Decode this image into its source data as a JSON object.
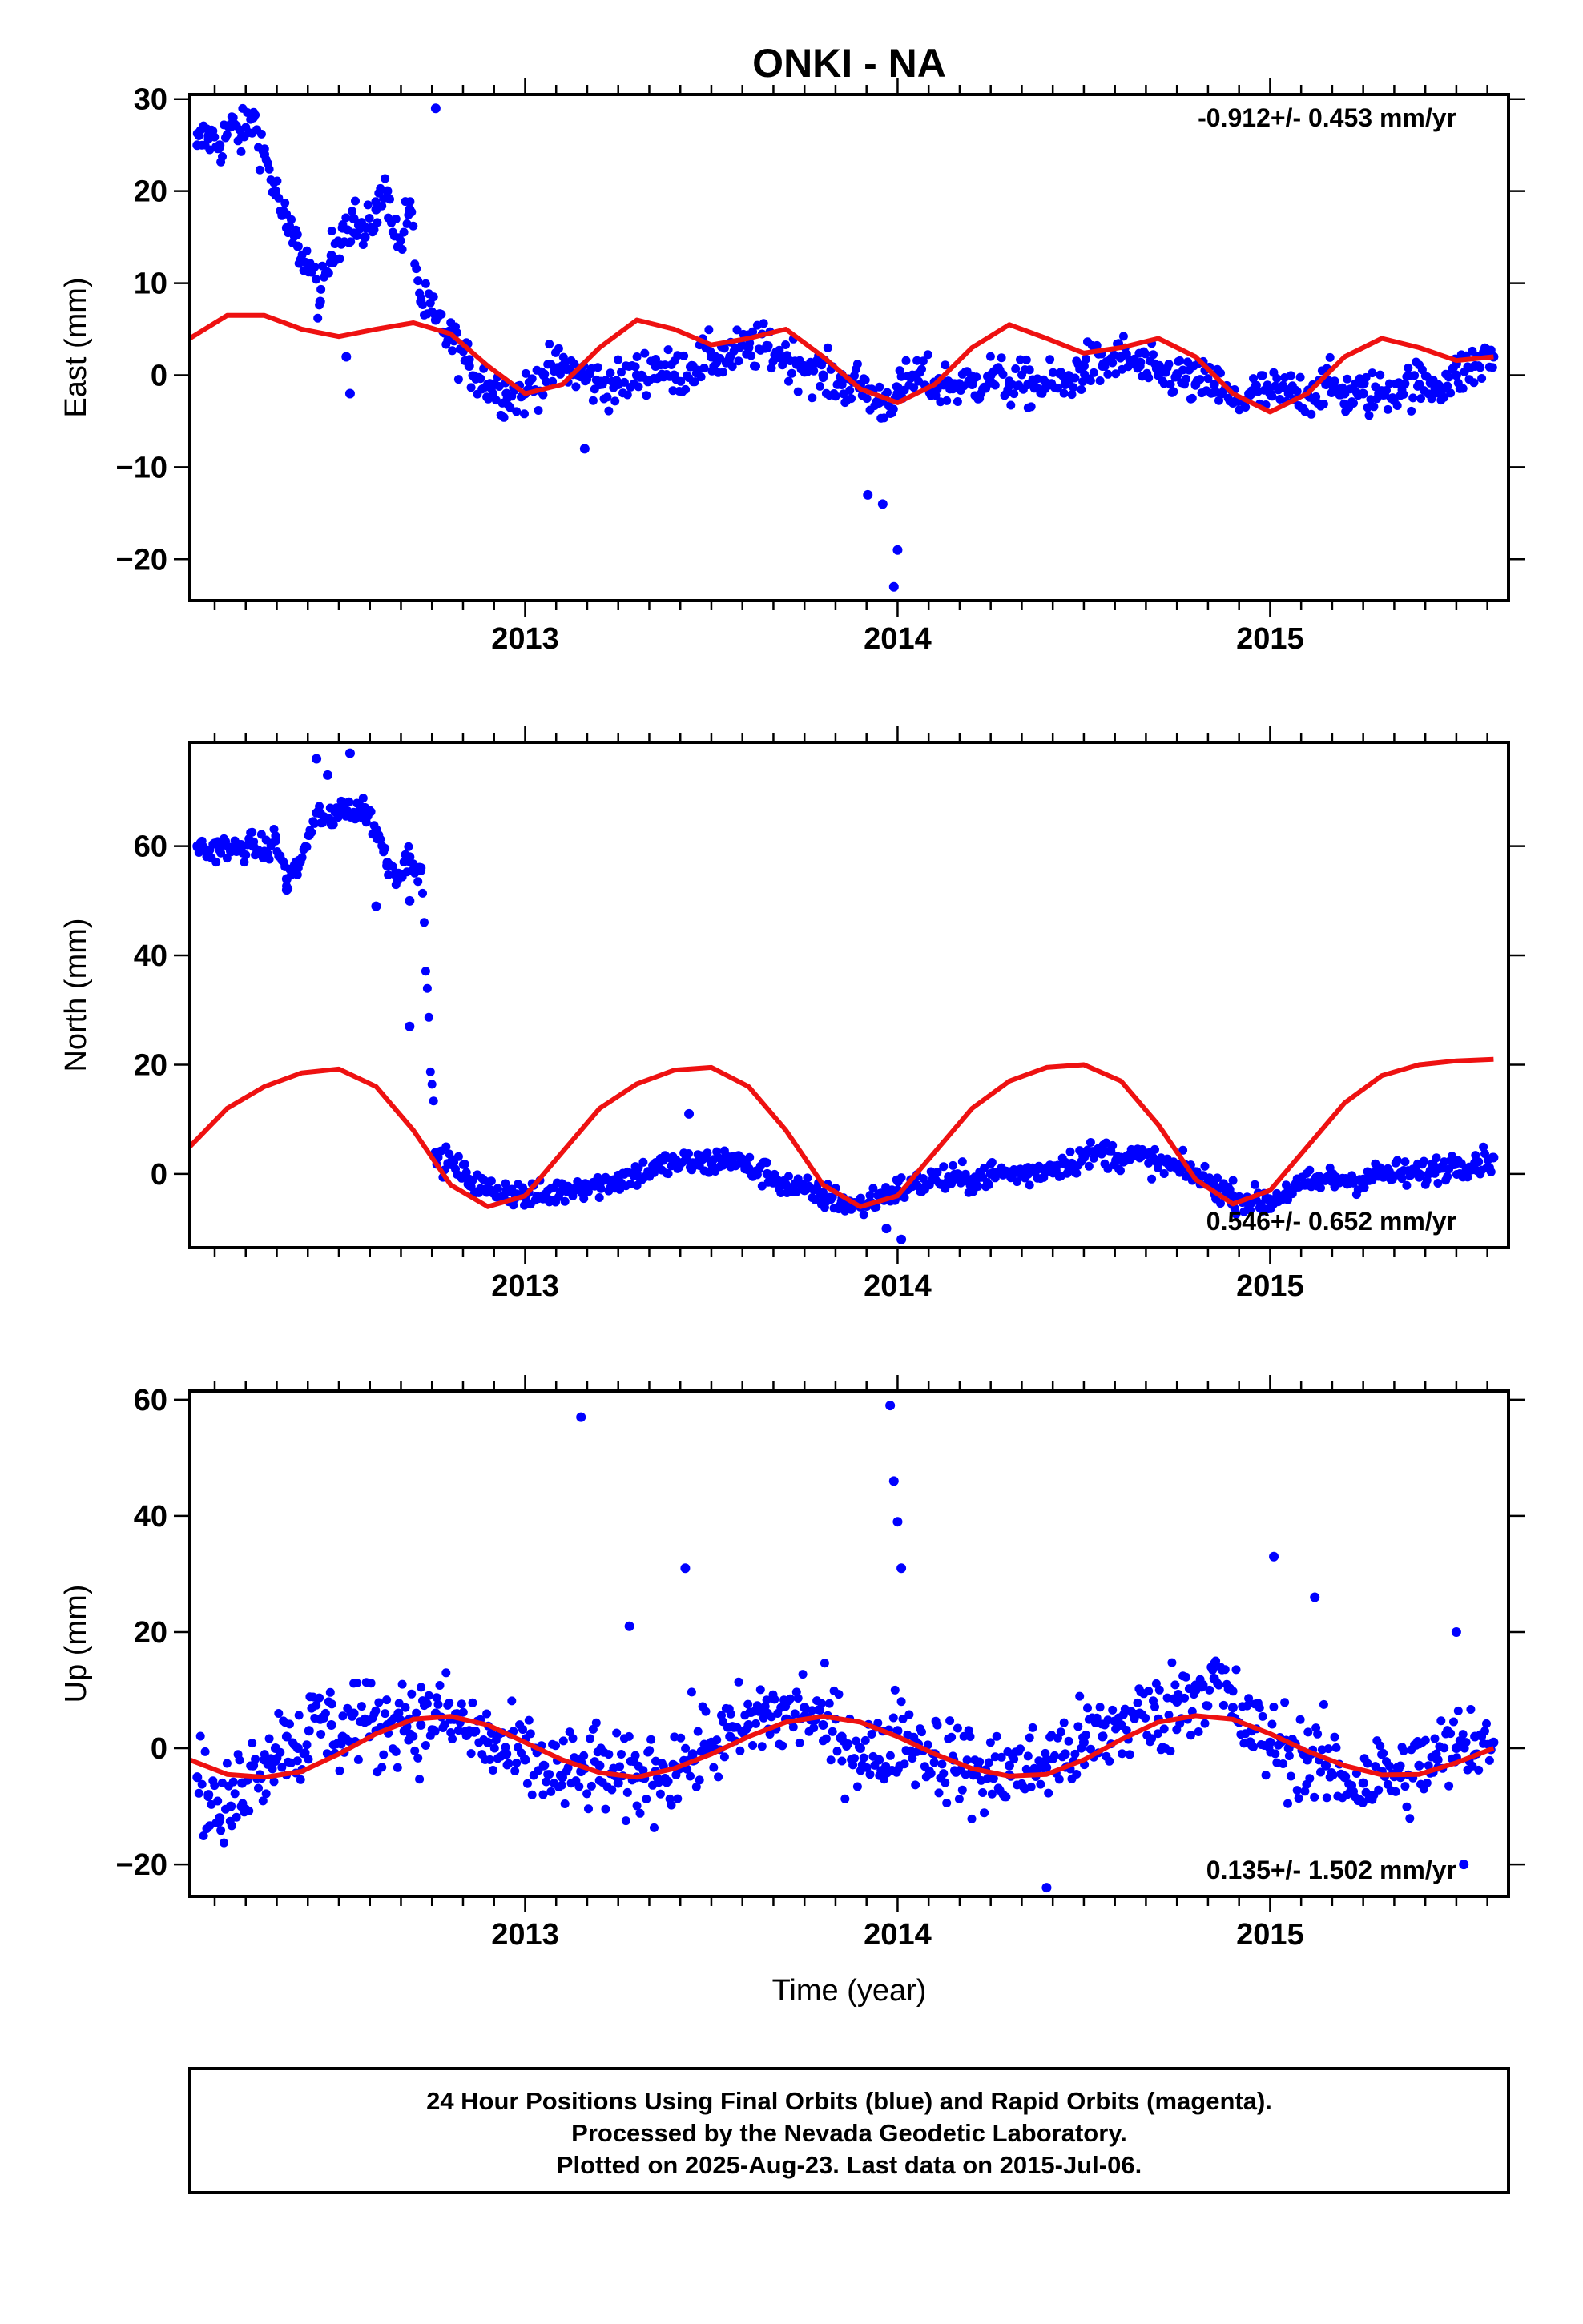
{
  "figure": {
    "title": "ONKI - NA",
    "footer": {
      "lines": [
        "24 Hour Positions Using Final Orbits (blue) and Rapid Orbits (magenta).",
        "Processed by the Nevada Geodetic Laboratory.",
        "Plotted on 2025-Aug-23. Last data on 2015-Jul-06."
      ]
    }
  },
  "chart_data": [
    {
      "type": "scatter",
      "ylabel": "East (mm)",
      "xlabel": "",
      "xlim": [
        2012.1,
        2015.64
      ],
      "ylim": [
        -24.5,
        30.5
      ],
      "xticks": [
        2013,
        2014,
        2015
      ],
      "yticks": [
        -20,
        -10,
        0,
        10,
        20,
        30
      ],
      "rate_label": "-0.912+/- 0.453 mm/yr",
      "rate_position": "top-right",
      "colors": {
        "points": "#0000ff",
        "model": "#ee1111"
      },
      "series": [
        {
          "kind": "points",
          "x": [
            2012.12,
            2012.15,
            2012.18,
            2012.21,
            2012.24,
            2012.27,
            2012.3,
            2012.33,
            2012.36,
            2012.39,
            2012.42,
            2012.45,
            2012.48,
            2012.51,
            2012.54,
            2012.57,
            2012.6,
            2012.63,
            2012.66,
            2012.69,
            2012.72,
            2012.76,
            2012.8,
            2012.85,
            2012.9,
            2012.95,
            2013.0,
            2013.05,
            2013.1,
            2013.15,
            2013.2,
            2013.25,
            2013.3,
            2013.35,
            2013.4,
            2013.45,
            2013.5,
            2013.55,
            2013.6,
            2013.65,
            2013.7,
            2013.75,
            2013.8,
            2013.85,
            2013.9,
            2013.95,
            2014.0,
            2014.05,
            2014.1,
            2014.15,
            2014.2,
            2014.25,
            2014.3,
            2014.35,
            2014.4,
            2014.45,
            2014.5,
            2014.55,
            2014.6,
            2014.65,
            2014.7,
            2014.75,
            2014.8,
            2014.85,
            2014.9,
            2014.95,
            2015.0,
            2015.05,
            2015.1,
            2015.15,
            2015.2,
            2015.25,
            2015.3,
            2015.35,
            2015.4,
            2015.45,
            2015.5,
            2015.55,
            2015.6
          ],
          "y": [
            25,
            26,
            25,
            27,
            26,
            28,
            24,
            20,
            16,
            14,
            12,
            8,
            13,
            16,
            17,
            15,
            18,
            20,
            14,
            18,
            8,
            6,
            4,
            1,
            -1,
            -2,
            -2,
            0,
            1,
            0,
            -1,
            -1,
            0,
            1,
            0,
            1,
            2,
            2,
            3,
            3,
            2,
            1,
            0,
            -1,
            -1,
            -3,
            -2,
            0,
            -1,
            -1,
            -1,
            0,
            -1,
            -1,
            -1,
            -1,
            1,
            1,
            2,
            1,
            0,
            0,
            -1,
            -1,
            -3,
            -2,
            -2,
            -2,
            -2,
            -1,
            -2,
            -2,
            -2,
            -1,
            -1,
            -1,
            0,
            1,
            2
          ]
        },
        {
          "kind": "outliers",
          "x": [
            2012.52,
            2012.53,
            2012.76,
            2013.16,
            2013.92,
            2013.96,
            2013.99,
            2014.0
          ],
          "y": [
            2,
            -2,
            29,
            -8,
            -13,
            -14,
            -23,
            -19
          ]
        },
        {
          "kind": "model",
          "x": [
            2012.1,
            2012.2,
            2012.3,
            2012.4,
            2012.5,
            2012.6,
            2012.7,
            2012.8,
            2012.9,
            2013.0,
            2013.1,
            2013.2,
            2013.3,
            2013.4,
            2013.5,
            2013.6,
            2013.7,
            2013.8,
            2013.9,
            2014.0,
            2014.1,
            2014.2,
            2014.3,
            2014.4,
            2014.5,
            2014.6,
            2014.7,
            2014.8,
            2014.9,
            2015.0,
            2015.1,
            2015.2,
            2015.3,
            2015.4,
            2015.5,
            2015.6
          ],
          "y": [
            4,
            6.5,
            6.5,
            5,
            4.2,
            5,
            5.7,
            4.5,
            1,
            -2,
            -1,
            3,
            6,
            5,
            3.3,
            4,
            5,
            2,
            -1.5,
            -3,
            -1,
            3,
            5.5,
            4,
            2.4,
            3,
            4,
            2,
            -2,
            -4,
            -2,
            2,
            4,
            3,
            1.6,
            2
          ]
        }
      ]
    },
    {
      "type": "scatter",
      "ylabel": "North (mm)",
      "xlabel": "",
      "xlim": [
        2012.1,
        2015.64
      ],
      "ylim": [
        -13.5,
        79
      ],
      "xticks": [
        2013,
        2014,
        2015
      ],
      "yticks": [
        0,
        20,
        40,
        60
      ],
      "rate_label": "0.546+/- 0.652 mm/yr",
      "rate_position": "bottom-right",
      "colors": {
        "points": "#0000ff",
        "model": "#ee1111"
      },
      "series": [
        {
          "kind": "points",
          "x": [
            2012.12,
            2012.15,
            2012.18,
            2012.21,
            2012.24,
            2012.27,
            2012.3,
            2012.33,
            2012.36,
            2012.39,
            2012.42,
            2012.45,
            2012.48,
            2012.51,
            2012.54,
            2012.57,
            2012.6,
            2012.63,
            2012.66,
            2012.69,
            2012.72,
            2012.76,
            2012.8,
            2012.85,
            2012.9,
            2012.95,
            2013.0,
            2013.05,
            2013.1,
            2013.15,
            2013.2,
            2013.25,
            2013.3,
            2013.35,
            2013.4,
            2013.45,
            2013.5,
            2013.55,
            2013.6,
            2013.65,
            2013.7,
            2013.75,
            2013.8,
            2013.85,
            2013.9,
            2013.95,
            2014.0,
            2014.05,
            2014.1,
            2014.15,
            2014.2,
            2014.25,
            2014.3,
            2014.35,
            2014.4,
            2014.45,
            2014.5,
            2014.55,
            2014.6,
            2014.65,
            2014.7,
            2014.75,
            2014.8,
            2014.85,
            2014.9,
            2014.95,
            2015.0,
            2015.05,
            2015.1,
            2015.15,
            2015.2,
            2015.25,
            2015.3,
            2015.35,
            2015.4,
            2015.45,
            2015.5,
            2015.55,
            2015.6
          ],
          "y": [
            60,
            59,
            60,
            59,
            60,
            60,
            59,
            61,
            54,
            56,
            62,
            66,
            64,
            68,
            66,
            67,
            63,
            57,
            55,
            58,
            56,
            3,
            2,
            -1,
            -3,
            -3,
            -4,
            -4,
            -3,
            -2,
            -2,
            -1,
            0,
            1,
            2,
            2,
            2,
            3,
            1,
            0,
            -2,
            -3,
            -4,
            -5,
            -6,
            -4,
            -3,
            -2,
            -1,
            -1,
            -1,
            0,
            0,
            0,
            1,
            2,
            3,
            4,
            3,
            3,
            2,
            1,
            0,
            -2,
            -4,
            -5,
            -5,
            -3,
            -2,
            -1,
            -1,
            -1,
            0,
            0,
            0,
            1,
            2,
            2,
            3
          ]
        },
        {
          "kind": "outliers",
          "x": [
            2012.36,
            2012.44,
            2012.47,
            2012.53,
            2012.6,
            2012.69,
            2012.69,
            2013.44,
            2013.97,
            2014.01
          ],
          "y": [
            52,
            76,
            73,
            77,
            49,
            50,
            27,
            11,
            -10,
            -12
          ]
        },
        {
          "kind": "model",
          "x": [
            2012.1,
            2012.2,
            2012.3,
            2012.4,
            2012.5,
            2012.6,
            2012.7,
            2012.8,
            2012.9,
            2013.0,
            2013.1,
            2013.2,
            2013.3,
            2013.4,
            2013.5,
            2013.6,
            2013.7,
            2013.8,
            2013.9,
            2014.0,
            2014.1,
            2014.2,
            2014.3,
            2014.4,
            2014.5,
            2014.6,
            2014.7,
            2014.8,
            2014.9,
            2015.0,
            2015.1,
            2015.2,
            2015.3,
            2015.4,
            2015.5,
            2015.6
          ],
          "y": [
            5,
            12,
            16,
            18.5,
            19.2,
            16,
            8,
            -2,
            -6,
            -4,
            4,
            12,
            16.5,
            19,
            19.5,
            16,
            8,
            -2,
            -6,
            -4,
            4,
            12,
            17,
            19.5,
            20,
            17,
            9,
            -1,
            -5.5,
            -3,
            5,
            13,
            18,
            20,
            20.7,
            21
          ]
        }
      ]
    },
    {
      "type": "scatter",
      "ylabel": "Up (mm)",
      "xlabel": "Time (year)",
      "xlim": [
        2012.1,
        2015.64
      ],
      "ylim": [
        -25.5,
        61.5
      ],
      "xticks": [
        2013,
        2014,
        2015
      ],
      "yticks": [
        -20,
        0,
        20,
        40,
        60
      ],
      "rate_label": "0.135+/- 1.502 mm/yr",
      "rate_position": "bottom-right",
      "colors": {
        "points": "#0000ff",
        "model": "#ee1111"
      },
      "series": [
        {
          "kind": "points",
          "x": [
            2012.12,
            2012.15,
            2012.18,
            2012.21,
            2012.24,
            2012.27,
            2012.3,
            2012.33,
            2012.36,
            2012.39,
            2012.42,
            2012.45,
            2012.48,
            2012.51,
            2012.54,
            2012.57,
            2012.6,
            2012.63,
            2012.66,
            2012.69,
            2012.72,
            2012.76,
            2012.8,
            2012.85,
            2012.9,
            2012.95,
            2013.0,
            2013.05,
            2013.1,
            2013.15,
            2013.2,
            2013.25,
            2013.3,
            2013.35,
            2013.4,
            2013.45,
            2013.5,
            2013.55,
            2013.6,
            2013.65,
            2013.7,
            2013.75,
            2013.8,
            2013.85,
            2013.9,
            2013.95,
            2014.0,
            2014.05,
            2014.1,
            2014.15,
            2014.2,
            2014.25,
            2014.3,
            2014.35,
            2014.4,
            2014.45,
            2014.5,
            2014.55,
            2014.6,
            2014.65,
            2014.7,
            2014.75,
            2014.8,
            2014.85,
            2014.9,
            2014.95,
            2015.0,
            2015.05,
            2015.1,
            2015.15,
            2015.2,
            2015.25,
            2015.3,
            2015.35,
            2015.4,
            2015.45,
            2015.5,
            2015.55,
            2015.6
          ],
          "y": [
            -5,
            -8,
            -12,
            -10,
            -6,
            -3,
            -2,
            0,
            2,
            0,
            3,
            5,
            4,
            2,
            6,
            5,
            3,
            4,
            6,
            5,
            4,
            6,
            5,
            3,
            1,
            -1,
            -2,
            -3,
            -5,
            -4,
            -3,
            -6,
            -5,
            -4,
            -3,
            -1,
            1,
            2,
            4,
            6,
            5,
            7,
            4,
            2,
            0,
            -2,
            3,
            1,
            -1,
            -2,
            -4,
            -5,
            -3,
            -4,
            -2,
            -1,
            1,
            2,
            4,
            6,
            5,
            8,
            10,
            12,
            7,
            3,
            1,
            0,
            -2,
            -3,
            -5,
            -6,
            -4,
            -5,
            -3,
            -2,
            0,
            2,
            1
          ]
        },
        {
          "kind": "outliers",
          "x": [
            2013.15,
            2013.28,
            2013.43,
            2013.98,
            2013.99,
            2014.0,
            2014.01,
            2014.4,
            2015.01,
            2015.12,
            2015.5,
            2015.52
          ],
          "y": [
            57,
            21,
            31,
            59,
            46,
            39,
            31,
            -24,
            33,
            26,
            20,
            -20
          ]
        },
        {
          "kind": "model",
          "x": [
            2012.1,
            2012.2,
            2012.3,
            2012.4,
            2012.5,
            2012.6,
            2012.7,
            2012.8,
            2012.9,
            2013.0,
            2013.1,
            2013.2,
            2013.3,
            2013.4,
            2013.5,
            2013.6,
            2013.7,
            2013.8,
            2013.9,
            2014.0,
            2014.1,
            2014.2,
            2014.3,
            2014.4,
            2014.5,
            2014.6,
            2014.7,
            2014.8,
            2014.9,
            2015.0,
            2015.1,
            2015.2,
            2015.3,
            2015.4,
            2015.5,
            2015.6
          ],
          "y": [
            -2,
            -4.5,
            -5,
            -4,
            -1,
            2.5,
            5,
            5.5,
            4,
            1,
            -2,
            -4.2,
            -5,
            -3.5,
            -1,
            2,
            4.5,
            5.5,
            4.5,
            2,
            -1,
            -3.5,
            -4.8,
            -4.5,
            -2,
            1.5,
            4.5,
            5.6,
            5,
            2.5,
            -0.5,
            -3,
            -4.6,
            -4.5,
            -2.5,
            0
          ]
        }
      ]
    }
  ]
}
